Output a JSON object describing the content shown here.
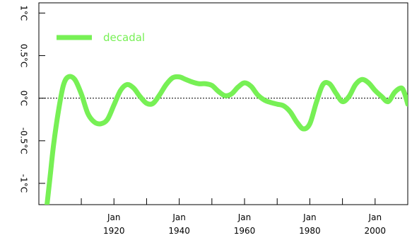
{
  "chart_data": {
    "type": "line",
    "title": "",
    "xlabel": "",
    "ylabel": "",
    "xlim": [
      1897,
      2010
    ],
    "ylim": [
      -1.25,
      1.12
    ],
    "grid": false,
    "legend_position": "top-left",
    "reference_line": {
      "y": 0,
      "style": "dotted"
    },
    "y_ticks": [
      {
        "value": 1.0,
        "label": "1°C"
      },
      {
        "value": 0.5,
        "label": "0.5°C"
      },
      {
        "value": 0.0,
        "label": "0°C"
      },
      {
        "value": -0.5,
        "label": "-0.5°C"
      },
      {
        "value": -1.0,
        "label": "-1°C"
      }
    ],
    "x_ticks": [
      {
        "value": 1920,
        "label_top": "Jan",
        "label_bottom": "1920"
      },
      {
        "value": 1940,
        "label_top": "Jan",
        "label_bottom": "1940"
      },
      {
        "value": 1960,
        "label_top": "Jan",
        "label_bottom": "1960"
      },
      {
        "value": 1980,
        "label_top": "Jan",
        "label_bottom": "1980"
      },
      {
        "value": 2000,
        "label_top": "Jan",
        "label_bottom": "2000"
      }
    ],
    "x_minor_ticks": [
      1910,
      1930,
      1950,
      1970,
      1990,
      2010
    ],
    "series": [
      {
        "name": "decadal",
        "color": "#77f055",
        "x": [
          1899.5,
          1900.5,
          1901.5,
          1903,
          1904.5,
          1906,
          1908,
          1910,
          1912,
          1914,
          1916,
          1918,
          1920,
          1922,
          1924,
          1926,
          1928,
          1930,
          1932,
          1934,
          1936,
          1938,
          1940,
          1942,
          1944,
          1946,
          1948,
          1950,
          1952,
          1954,
          1956,
          1958,
          1960,
          1962,
          1964,
          1966,
          1968,
          1970,
          1972,
          1974,
          1976,
          1978,
          1980,
          1982,
          1984,
          1986,
          1988,
          1990,
          1992,
          1994,
          1996,
          1998,
          2000,
          2002,
          2004,
          2006,
          2008,
          2009,
          2010
        ],
        "y": [
          -1.25,
          -0.9,
          -0.55,
          -0.15,
          0.15,
          0.25,
          0.22,
          0.05,
          -0.18,
          -0.28,
          -0.3,
          -0.25,
          -0.08,
          0.09,
          0.16,
          0.12,
          0.02,
          -0.06,
          -0.06,
          0.04,
          0.16,
          0.24,
          0.25,
          0.22,
          0.19,
          0.17,
          0.17,
          0.15,
          0.08,
          0.03,
          0.05,
          0.13,
          0.18,
          0.14,
          0.04,
          -0.02,
          -0.05,
          -0.07,
          -0.09,
          -0.16,
          -0.28,
          -0.36,
          -0.3,
          -0.05,
          0.16,
          0.17,
          0.06,
          -0.04,
          0.02,
          0.16,
          0.22,
          0.18,
          0.09,
          0.02,
          -0.04,
          0.07,
          0.12,
          0.06,
          -0.07
        ]
      }
    ]
  }
}
